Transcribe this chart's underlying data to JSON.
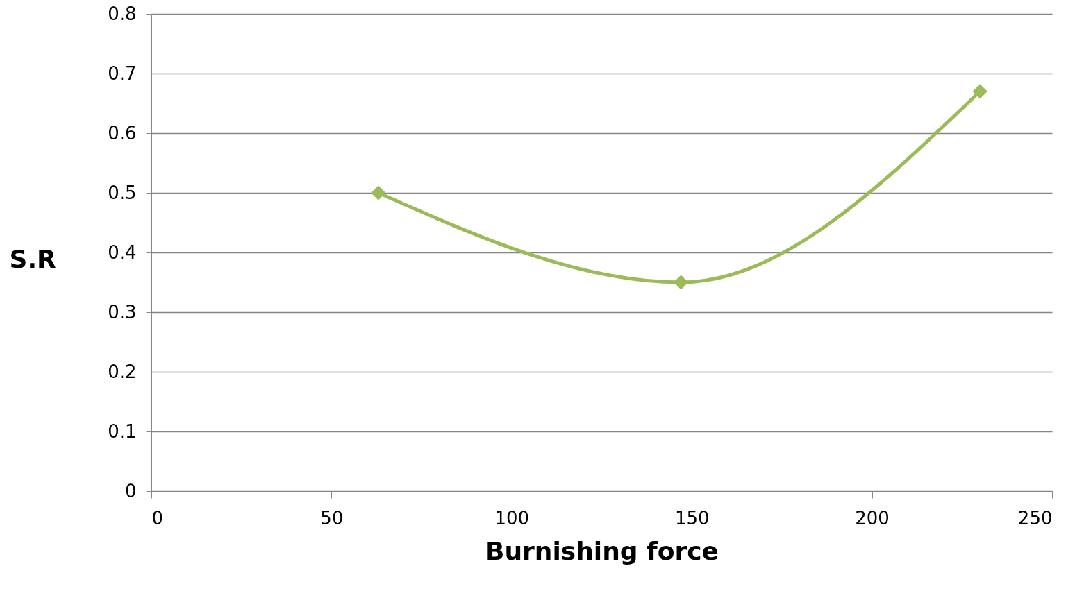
{
  "chart_data": {
    "type": "line",
    "xlabel": "Burnishing force",
    "ylabel": "S.R",
    "x": [
      63,
      147,
      230
    ],
    "series": [
      {
        "color": "#9bbb59",
        "values": [
          0.5,
          0.35,
          0.67
        ]
      }
    ],
    "xlim": [
      0,
      250
    ],
    "xticks": [
      0,
      50,
      100,
      150,
      200,
      250
    ],
    "ylim": [
      0,
      0.8
    ],
    "yticks": [
      0,
      0.1,
      0.2,
      0.3,
      0.4,
      0.5,
      0.6,
      0.7,
      0.8
    ],
    "grid": "y",
    "marker": "diamond",
    "line_style": "solid"
  }
}
